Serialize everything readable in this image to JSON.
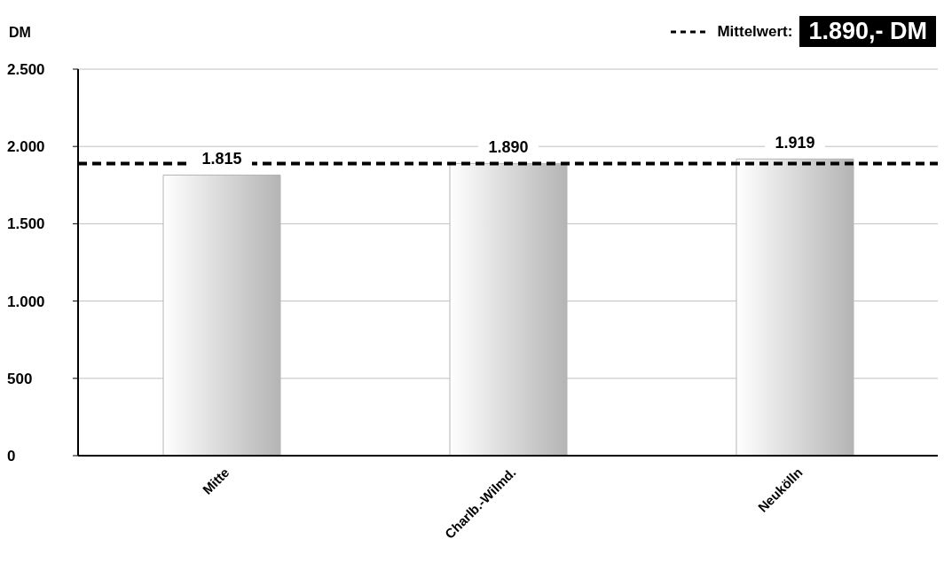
{
  "chart_data": {
    "type": "bar",
    "ylabel": "DM",
    "categories": [
      "Mitte",
      "Charlb.-Wilmd.",
      "Neukölln"
    ],
    "values": [
      1815,
      1890,
      1919
    ],
    "value_labels": [
      "1.815",
      "1.890",
      "1.919"
    ],
    "color": "#b4b4b4",
    "ylim": [
      0,
      2500
    ],
    "yticks": [
      {
        "value": 0,
        "label": "0"
      },
      {
        "value": 500,
        "label": "500"
      },
      {
        "value": 1000,
        "label": "1.000"
      },
      {
        "value": 1500,
        "label": "1.500"
      },
      {
        "value": 2000,
        "label": "2.000"
      },
      {
        "value": 2500,
        "label": "2.500"
      }
    ],
    "grid": "y",
    "legend": "top right",
    "ref_lines": [
      {
        "axis": "y",
        "value": 1890,
        "label": "Mittelwert:",
        "color": "#000000",
        "line_style": "dashed"
      }
    ],
    "annotations": [
      "1.890,- DM"
    ]
  }
}
